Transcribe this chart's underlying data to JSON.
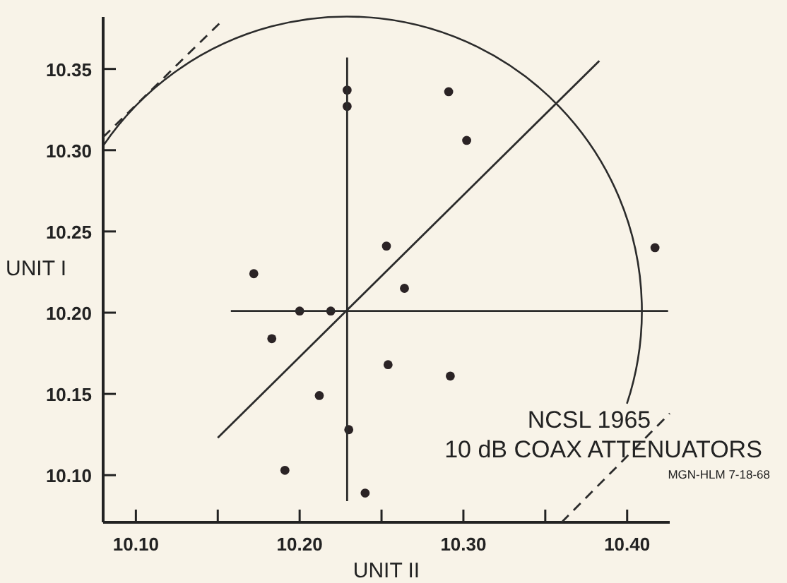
{
  "chart_data": {
    "type": "scatter",
    "title": "NCSL 1965",
    "subtitle": "10 dB COAX ATTENUATORS",
    "annotations": [
      "MGN-HLM 7-18-68"
    ],
    "xlabel": "UNIT II",
    "ylabel": "UNIT I",
    "xlim": [
      10.08,
      10.426
    ],
    "ylim": [
      10.071,
      10.382
    ],
    "xticks": [
      {
        "value": 10.1,
        "label": "10.10"
      },
      {
        "value": 10.15,
        "label": null
      },
      {
        "value": 10.2,
        "label": "10.20"
      },
      {
        "value": 10.25,
        "label": null
      },
      {
        "value": 10.3,
        "label": "10.30"
      },
      {
        "value": 10.35,
        "label": null
      },
      {
        "value": 10.4,
        "label": "10.40"
      }
    ],
    "yticks": [
      {
        "value": 10.1,
        "label": "10.10"
      },
      {
        "value": 10.15,
        "label": "10.15"
      },
      {
        "value": 10.2,
        "label": "10.20"
      },
      {
        "value": 10.25,
        "label": "10.25"
      },
      {
        "value": 10.3,
        "label": "10.30"
      },
      {
        "value": 10.35,
        "label": "10.35"
      }
    ],
    "grid": false,
    "marker": "circle",
    "series": [
      {
        "color": "#2b2325",
        "x": [
          10.172,
          10.229,
          10.229,
          10.253,
          10.2,
          10.219,
          10.183,
          10.254,
          10.212,
          10.23,
          10.191,
          10.24,
          10.291,
          10.302,
          10.417,
          10.264,
          10.292
        ],
        "values": [
          10.224,
          10.337,
          10.327,
          10.241,
          10.201,
          10.201,
          10.184,
          10.168,
          10.149,
          10.128,
          10.103,
          10.089,
          10.336,
          10.306,
          10.24,
          10.215,
          10.161
        ]
      },
      {
        "type": "line",
        "color": "#2b2b2b",
        "marker": "none",
        "line_style": "solid",
        "x": [
          10.229,
          10.229
        ],
        "values": [
          10.084,
          10.357
        ]
      },
      {
        "type": "line",
        "color": "#2b2b2b",
        "marker": "none",
        "line_style": "solid",
        "x": [
          10.158,
          10.425
        ],
        "values": [
          10.201,
          10.201
        ]
      },
      {
        "type": "line",
        "color": "#2b2b2b",
        "marker": "none",
        "line_style": "solid",
        "x": [
          10.15,
          10.383
        ],
        "values": [
          10.123,
          10.355
        ]
      },
      {
        "type": "line",
        "color": "#2b2b2b",
        "marker": "none",
        "line_style": "dashed",
        "x": [
          10.08,
          10.153
        ],
        "values": [
          10.308,
          10.38
        ]
      },
      {
        "type": "line",
        "color": "#2b2b2b",
        "marker": "none",
        "line_style": "dashed",
        "x": [
          10.36,
          10.426
        ],
        "values": [
          10.071,
          10.138
        ]
      }
    ]
  }
}
